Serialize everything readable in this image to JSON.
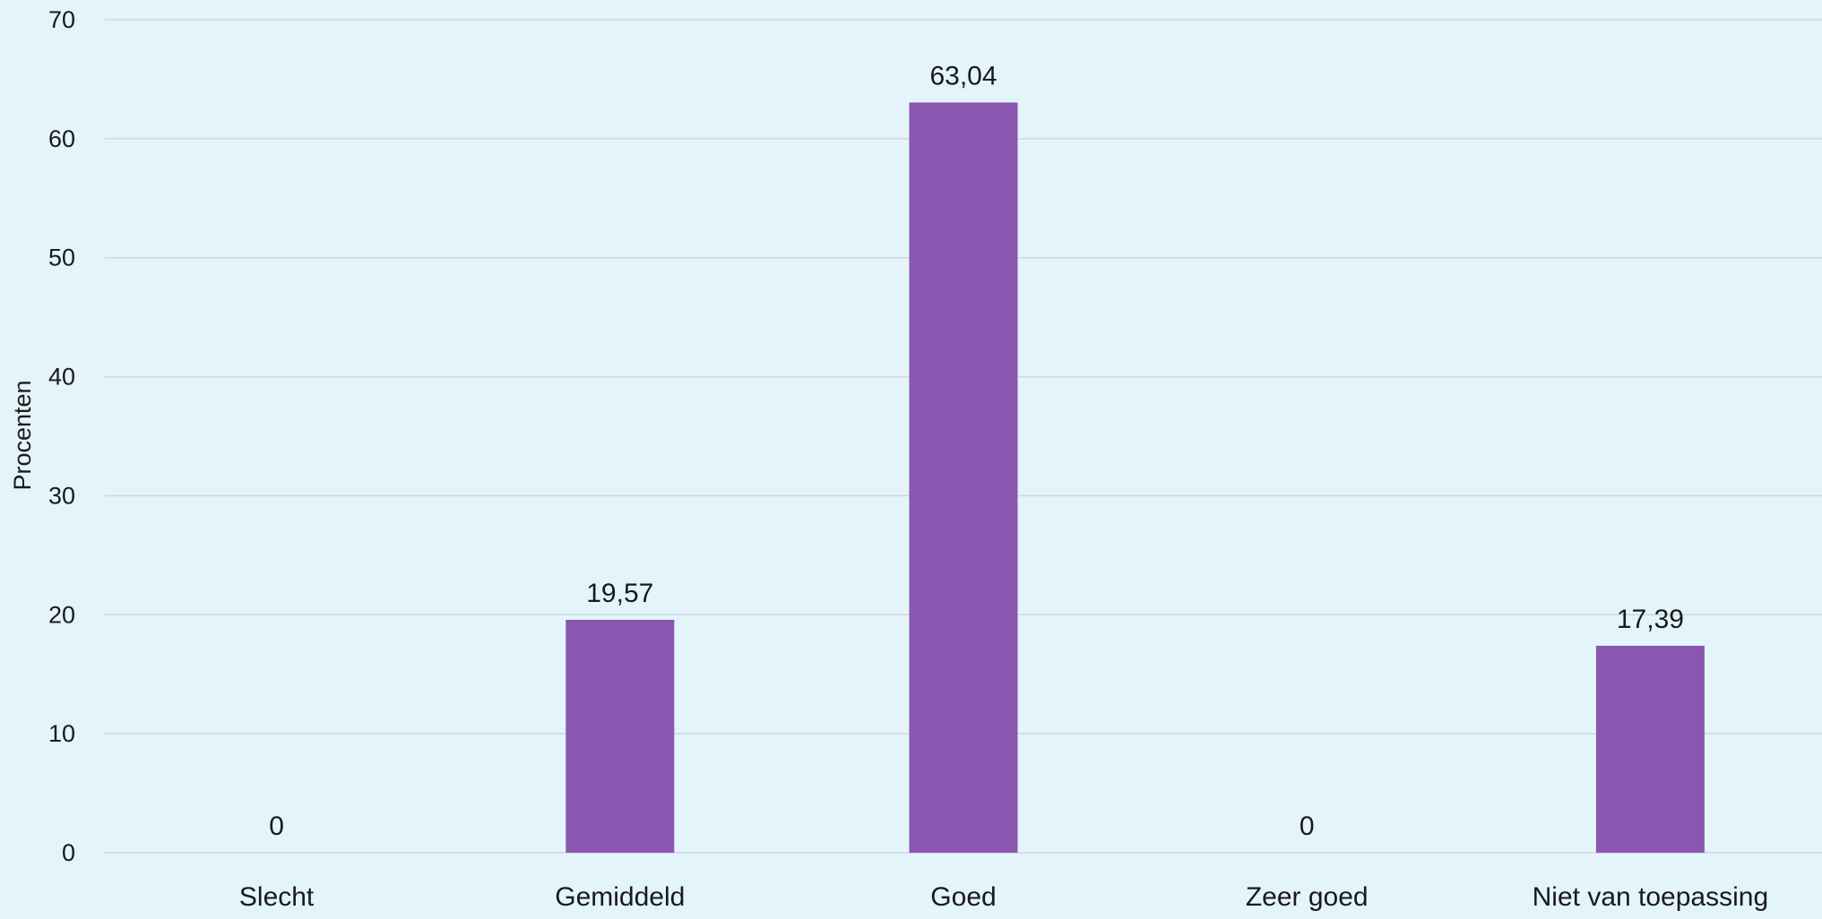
{
  "chart_data": {
    "type": "bar",
    "title": "",
    "xlabel": "",
    "ylabel": "Procenten",
    "categories": [
      "Slecht",
      "Gemiddeld",
      "Goed",
      "Zeer goed",
      "Niet van toepassing"
    ],
    "values": [
      0,
      19.57,
      63.04,
      0,
      17.39
    ],
    "data_labels": [
      "0",
      "19,57",
      "63,04",
      "0",
      "17,39"
    ],
    "ylim": [
      0,
      70
    ],
    "yticks": [
      0,
      10,
      20,
      30,
      40,
      50,
      60,
      70
    ],
    "ytick_labels": [
      "0",
      "10",
      "20",
      "30",
      "40",
      "50",
      "60",
      "70"
    ],
    "grid": true,
    "legend": "none",
    "colors": {
      "bar": "#8a56b0",
      "grid": "#cfd7de",
      "background": "#e4f4fb",
      "text": "#1a1a1a"
    }
  }
}
